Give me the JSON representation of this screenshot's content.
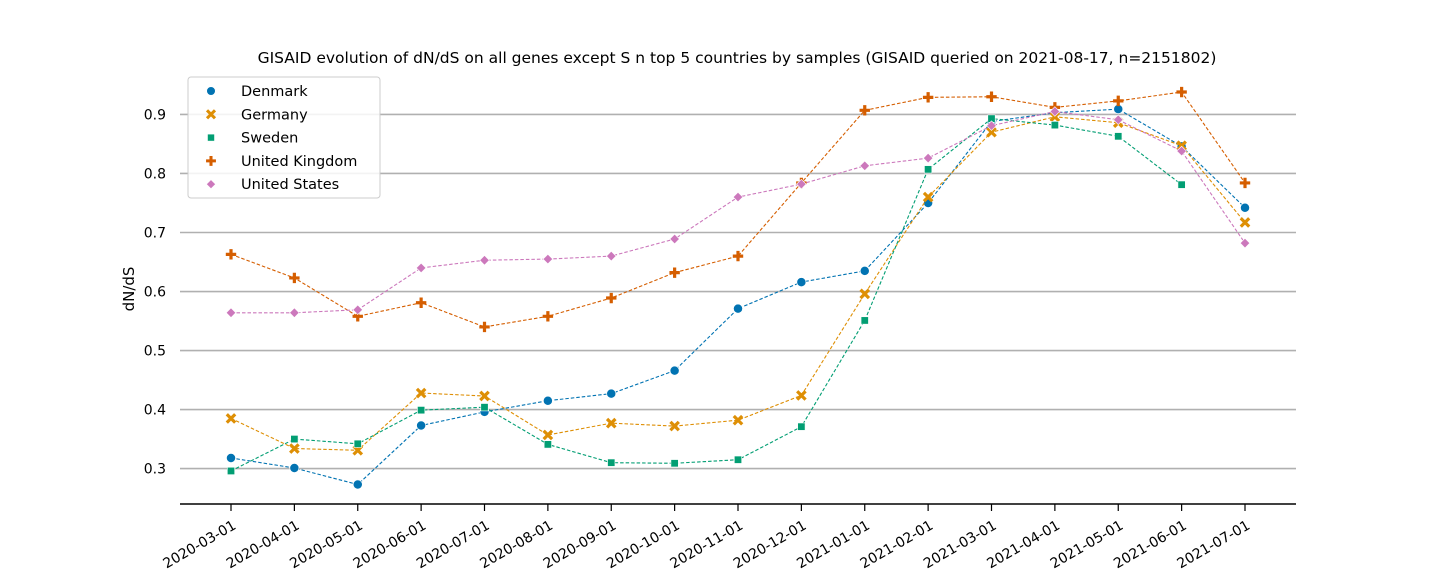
{
  "chart_data": {
    "type": "line",
    "title": "GISAID evolution of dN/dS on all genes except S n top 5 countries by samples (GISAID queried on 2021-08-17, n=2151802)",
    "xlabel": "",
    "ylabel": "dN/dS",
    "ylim": [
      0.24,
      0.955
    ],
    "yticks": [
      "0.3",
      "0.4",
      "0.5",
      "0.6",
      "0.7",
      "0.8",
      "0.9"
    ],
    "grid": "horizontal",
    "legend_position": "top-left",
    "x": [
      "2020-03-01",
      "2020-04-01",
      "2020-05-01",
      "2020-06-01",
      "2020-07-01",
      "2020-08-01",
      "2020-09-01",
      "2020-10-01",
      "2020-11-01",
      "2020-12-01",
      "2021-01-01",
      "2021-02-01",
      "2021-03-01",
      "2021-04-01",
      "2021-05-01",
      "2021-06-01",
      "2021-07-01"
    ],
    "series": [
      {
        "name": "Denmark",
        "color": "#0173b2",
        "marker": "circle",
        "values": [
          0.318,
          0.301,
          0.273,
          0.373,
          0.396,
          0.415,
          0.427,
          0.466,
          0.571,
          0.616,
          0.635,
          0.75,
          0.888,
          0.903,
          0.909,
          0.846,
          0.742
        ]
      },
      {
        "name": "Germany",
        "color": "#de8f05",
        "marker": "x",
        "values": [
          0.385,
          0.334,
          0.331,
          0.428,
          0.423,
          0.357,
          0.377,
          0.372,
          0.382,
          0.424,
          0.596,
          0.76,
          0.87,
          0.896,
          0.886,
          0.847,
          0.717
        ]
      },
      {
        "name": "Sweden",
        "color": "#029e73",
        "marker": "square",
        "values": [
          0.296,
          0.35,
          0.342,
          0.399,
          0.404,
          0.341,
          0.31,
          0.309,
          0.315,
          0.371,
          0.551,
          0.807,
          0.893,
          0.882,
          0.863,
          0.781,
          null
        ]
      },
      {
        "name": "United Kingdom",
        "color": "#d55e00",
        "marker": "plus",
        "values": [
          0.663,
          0.623,
          0.558,
          0.581,
          0.54,
          0.558,
          0.589,
          0.632,
          0.66,
          0.784,
          0.907,
          0.929,
          0.93,
          0.912,
          0.923,
          0.938,
          0.784
        ]
      },
      {
        "name": "United States",
        "color": "#cc78bc",
        "marker": "diamond",
        "values": [
          0.564,
          0.564,
          0.569,
          0.64,
          0.653,
          0.655,
          0.66,
          0.689,
          0.76,
          0.782,
          0.813,
          0.826,
          0.881,
          0.905,
          0.891,
          0.838,
          0.682
        ]
      }
    ]
  }
}
